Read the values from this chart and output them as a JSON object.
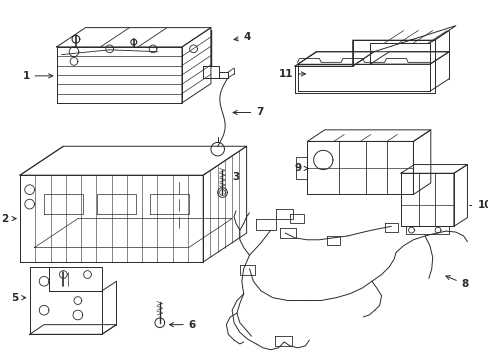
{
  "bg_color": "#ffffff",
  "line_color": "#2a2a2a",
  "lw": 0.7,
  "fig_width": 4.89,
  "fig_height": 3.6,
  "dpi": 100
}
